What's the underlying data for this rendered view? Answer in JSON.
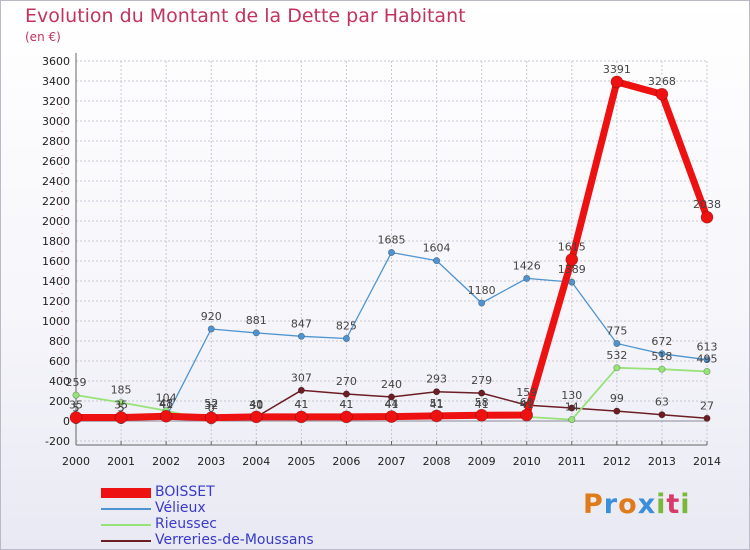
{
  "title": "Evolution du Montant de la Dette par Habitant",
  "subtitle": "(en €)",
  "brand": "Proxiti",
  "brand_colors": [
    "#e07b1a",
    "#3a8fd8",
    "#e07b1a",
    "#3a8fd8",
    "#7ab83a",
    "#d83a6a",
    "#7ab83a"
  ],
  "chart_data": {
    "type": "line",
    "title": "Evolution du Montant de la Dette par Habitant",
    "subtitle": "(en €)",
    "x": [
      2000,
      2001,
      2002,
      2003,
      2004,
      2005,
      2006,
      2007,
      2008,
      2009,
      2010,
      2011,
      2012,
      2013,
      2014
    ],
    "ylim": [
      -200,
      3600
    ],
    "yticks": [
      -200,
      0,
      200,
      400,
      600,
      800,
      1000,
      1200,
      1400,
      1600,
      1800,
      2000,
      2200,
      2400,
      2600,
      2800,
      3000,
      3200,
      3400,
      3600
    ],
    "grid": true,
    "legend_position": "bottom-left",
    "series": [
      {
        "name": "Verreries-de-Moussans",
        "color": "#6b1e24",
        "values": [
          5,
          5,
          41,
          52,
          40,
          307,
          270,
          240,
          293,
          279,
          159,
          130,
          99,
          63,
          27
        ]
      },
      {
        "name": "Rieussec",
        "color": "#98e27a",
        "values": [
          259,
          185,
          104,
          0,
          30,
          41,
          41,
          41,
          41,
          41,
          41,
          14,
          532,
          518,
          495
        ]
      },
      {
        "name": "Vélieux",
        "color": "#4f94cf",
        "values": [
          5,
          5,
          41,
          920,
          881,
          847,
          825,
          1685,
          1604,
          1180,
          1426,
          1389,
          775,
          672,
          613
        ]
      },
      {
        "name": "BOISSET",
        "color": "#ee1111",
        "values": [
          35,
          35,
          48,
          32,
          41,
          41,
          41,
          44,
          51,
          58,
          60,
          1615,
          3391,
          3268,
          2038
        ]
      }
    ]
  }
}
